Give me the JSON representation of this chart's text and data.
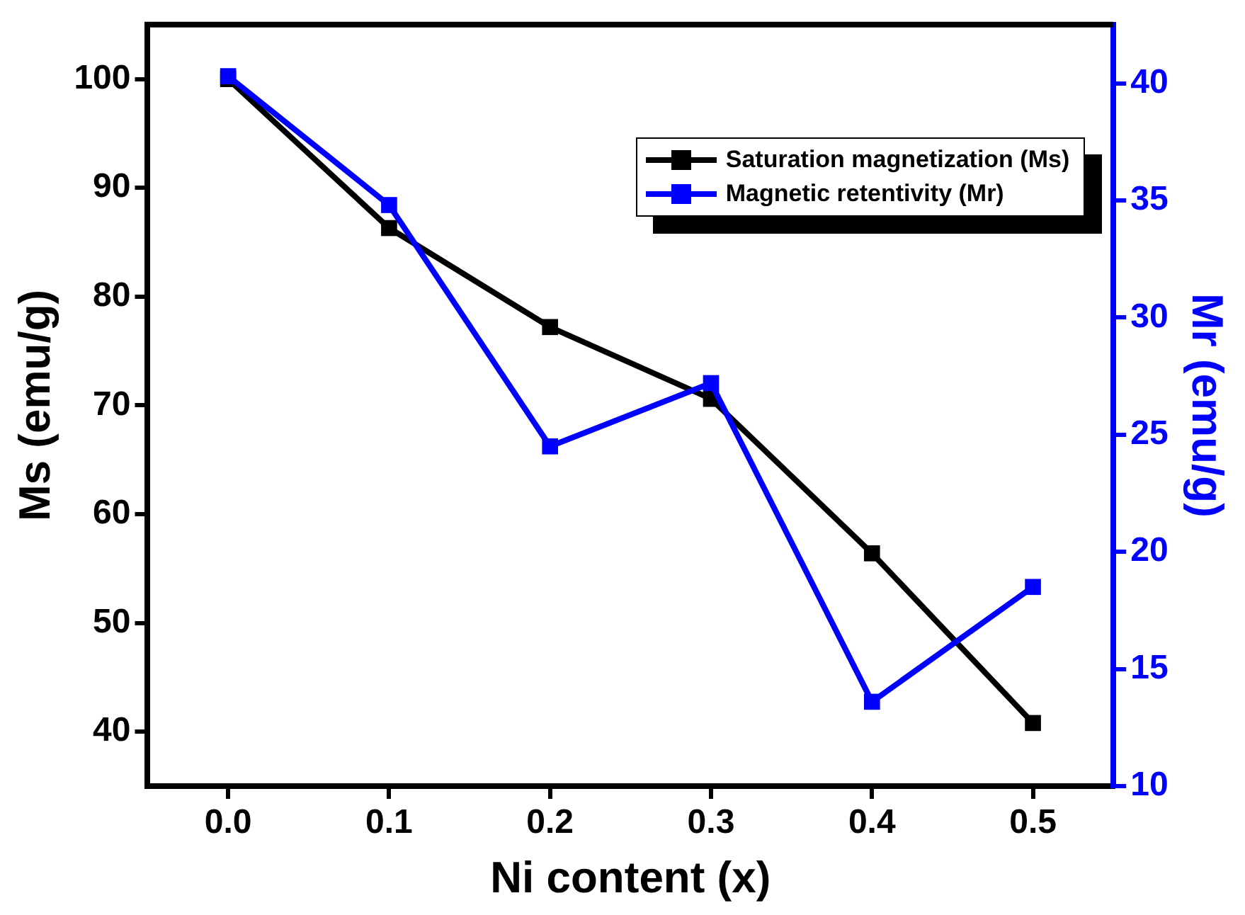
{
  "chart_data": {
    "type": "line",
    "xlabel": "Ni content (x)",
    "ylabel": "Ms (emu/g)",
    "y2label": "Mr (emu/g)",
    "x": [
      0.0,
      0.1,
      0.2,
      0.3,
      0.4,
      0.5
    ],
    "series": [
      {
        "name": "Saturation magnetization (Ms)",
        "color": "#000000",
        "values": [
          100,
          86.3,
          77.2,
          70.6,
          56.4,
          40.8
        ]
      },
      {
        "name": "Magnetic retentivity (Mr)",
        "color": "#0000ff",
        "axis": "y2",
        "values": [
          40.3,
          34.8,
          24.5,
          27.2,
          13.6,
          18.5
        ]
      }
    ],
    "xlim": [
      -0.05,
      0.55
    ],
    "xticks": [
      {
        "value": 0,
        "label": "0.0"
      },
      0.1,
      0.2,
      0.3,
      0.4,
      0.5
    ],
    "ylim": [
      35,
      105
    ],
    "yticks": [
      40,
      50,
      60,
      70,
      80,
      90,
      100
    ],
    "y2lim": [
      10,
      42.5
    ],
    "y2ticks": [
      10,
      15,
      20,
      25,
      30,
      35,
      40
    ],
    "legend": "top right",
    "marker": "square",
    "line_style": "solid",
    "grid": false
  }
}
